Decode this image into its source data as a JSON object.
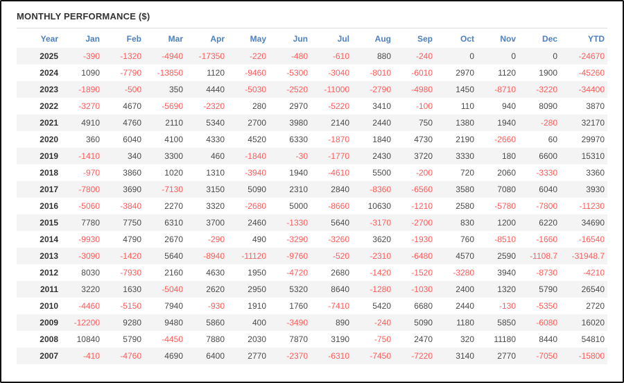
{
  "title": "MONTHLY PERFORMANCE ($)",
  "columns": [
    "Year",
    "Jan",
    "Feb",
    "Mar",
    "Apr",
    "May",
    "Jun",
    "Jul",
    "Aug",
    "Sep",
    "Oct",
    "Nov",
    "Dec",
    "YTD"
  ],
  "rows": [
    {
      "year": "2025",
      "values": [
        "-390",
        "-1320",
        "-4940",
        "-17350",
        "-220",
        "-480",
        "-610",
        "880",
        "-240",
        "0",
        "0",
        "0",
        "-24670"
      ]
    },
    {
      "year": "2024",
      "values": [
        "1090",
        "-7790",
        "-13850",
        "1120",
        "-9460",
        "-5300",
        "-3040",
        "-8010",
        "-6010",
        "2970",
        "1120",
        "1900",
        "-45260"
      ]
    },
    {
      "year": "2023",
      "values": [
        "-1890",
        "-500",
        "350",
        "4440",
        "-5030",
        "-2520",
        "-11000",
        "-2790",
        "-4980",
        "1450",
        "-8710",
        "-3220",
        "-34400"
      ]
    },
    {
      "year": "2022",
      "values": [
        "-3270",
        "4670",
        "-5690",
        "-2320",
        "280",
        "2970",
        "-5220",
        "3410",
        "-100",
        "110",
        "940",
        "8090",
        "3870"
      ]
    },
    {
      "year": "2021",
      "values": [
        "4910",
        "4760",
        "2110",
        "5340",
        "2700",
        "3980",
        "2140",
        "2440",
        "750",
        "1380",
        "1940",
        "-280",
        "32170"
      ]
    },
    {
      "year": "2020",
      "values": [
        "360",
        "6040",
        "4100",
        "4330",
        "4520",
        "6330",
        "-1870",
        "1840",
        "4730",
        "2190",
        "-2660",
        "60",
        "29970"
      ]
    },
    {
      "year": "2019",
      "values": [
        "-1410",
        "340",
        "3300",
        "460",
        "-1840",
        "-30",
        "-1770",
        "2430",
        "3720",
        "3330",
        "180",
        "6600",
        "15310"
      ]
    },
    {
      "year": "2018",
      "values": [
        "-970",
        "3860",
        "1020",
        "1310",
        "-3940",
        "1940",
        "-4610",
        "5500",
        "-200",
        "720",
        "2060",
        "-3330",
        "3360"
      ]
    },
    {
      "year": "2017",
      "values": [
        "-7800",
        "3690",
        "-7130",
        "3150",
        "5090",
        "2310",
        "2840",
        "-8360",
        "-6560",
        "3580",
        "7080",
        "6040",
        "3930"
      ]
    },
    {
      "year": "2016",
      "values": [
        "-5060",
        "-3840",
        "2270",
        "3320",
        "-2680",
        "5000",
        "-8660",
        "10630",
        "-1210",
        "2580",
        "-5780",
        "-7800",
        "-11230"
      ]
    },
    {
      "year": "2015",
      "values": [
        "7780",
        "7750",
        "6310",
        "3700",
        "2460",
        "-1330",
        "5640",
        "-3170",
        "-2700",
        "830",
        "1200",
        "6220",
        "34690"
      ]
    },
    {
      "year": "2014",
      "values": [
        "-9930",
        "4790",
        "2670",
        "-290",
        "490",
        "-3290",
        "-3260",
        "3620",
        "-1930",
        "760",
        "-8510",
        "-1660",
        "-16540"
      ]
    },
    {
      "year": "2013",
      "values": [
        "-3090",
        "-1420",
        "5640",
        "-8940",
        "-11120",
        "-9760",
        "-520",
        "-2310",
        "-6480",
        "4570",
        "2590",
        "-1108.7",
        "-31948.7"
      ]
    },
    {
      "year": "2012",
      "values": [
        "8030",
        "-7930",
        "2160",
        "4630",
        "1950",
        "-4720",
        "2680",
        "-1420",
        "-1520",
        "-3280",
        "3940",
        "-8730",
        "-4210"
      ]
    },
    {
      "year": "2011",
      "values": [
        "3220",
        "1630",
        "-5040",
        "2620",
        "2950",
        "5320",
        "8640",
        "-1280",
        "-1030",
        "2400",
        "1320",
        "5790",
        "26540"
      ]
    },
    {
      "year": "2010",
      "values": [
        "-4460",
        "-5150",
        "7940",
        "-930",
        "1910",
        "1760",
        "-7410",
        "5420",
        "6680",
        "2440",
        "-130",
        "-5350",
        "2720"
      ]
    },
    {
      "year": "2009",
      "values": [
        "-12200",
        "9280",
        "9480",
        "5860",
        "400",
        "-3490",
        "890",
        "-240",
        "5090",
        "1180",
        "5850",
        "-6080",
        "16020"
      ]
    },
    {
      "year": "2008",
      "values": [
        "10840",
        "5790",
        "-4450",
        "7880",
        "2030",
        "7870",
        "3190",
        "-750",
        "2470",
        "320",
        "11180",
        "8440",
        "54810"
      ]
    },
    {
      "year": "2007",
      "values": [
        "-410",
        "-4760",
        "4690",
        "6400",
        "2770",
        "-2370",
        "-6310",
        "-7450",
        "-7220",
        "3140",
        "2770",
        "-7050",
        "-15800"
      ]
    }
  ],
  "colors": {
    "header_text": "#4d80be",
    "negative_value": "#ff5c5c",
    "positive_value": "#4a4a4a",
    "year_text": "#333333",
    "row_stripe": "#f4f4f4",
    "divider": "#dcdcdc",
    "frame_border": "#111111"
  }
}
